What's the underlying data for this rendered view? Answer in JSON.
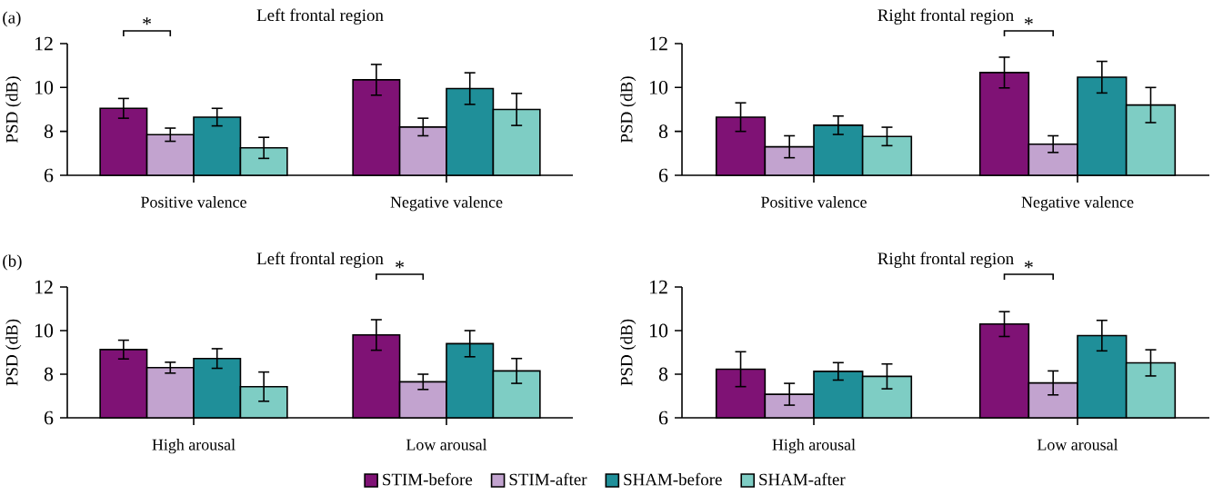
{
  "chart_data": [
    {
      "type": "bar",
      "title": "Left frontal region",
      "ylabel": "PSD (dB)",
      "categories": [
        "Positive valence",
        "Negative valence"
      ],
      "ylim": [
        6,
        12
      ],
      "yticks": [
        6,
        8,
        10,
        12
      ],
      "series": [
        {
          "color": "#7f1275",
          "values": [
            9.05,
            10.35
          ],
          "errors": [
            0.45,
            0.7
          ]
        },
        {
          "color": "#c2a3cf",
          "values": [
            7.85,
            8.2
          ],
          "errors": [
            0.3,
            0.4
          ]
        },
        {
          "color": "#1f8f99",
          "values": [
            8.65,
            9.95
          ],
          "errors": [
            0.4,
            0.72
          ]
        },
        {
          "color": "#7ecdc4",
          "values": [
            7.25,
            9.0
          ],
          "errors": [
            0.48,
            0.73
          ]
        }
      ],
      "annotations": [
        "(a)",
        "*"
      ]
    },
    {
      "type": "bar",
      "title": "Right frontal region",
      "ylabel": "PSD (dB)",
      "categories": [
        "Positive valence",
        "Negative valence"
      ],
      "ylim": [
        6,
        12
      ],
      "yticks": [
        6,
        8,
        10,
        12
      ],
      "series": [
        {
          "color": "#7f1275",
          "values": [
            8.65,
            10.68
          ],
          "errors": [
            0.65,
            0.7
          ]
        },
        {
          "color": "#c2a3cf",
          "values": [
            7.3,
            7.42
          ],
          "errors": [
            0.5,
            0.38
          ]
        },
        {
          "color": "#1f8f99",
          "values": [
            8.28,
            10.47
          ],
          "errors": [
            0.42,
            0.72
          ]
        },
        {
          "color": "#7ecdc4",
          "values": [
            7.77,
            9.2
          ],
          "errors": [
            0.42,
            0.8
          ]
        }
      ],
      "annotations": [
        "*"
      ]
    },
    {
      "type": "bar",
      "title": "Left frontal region",
      "ylabel": "PSD (dB)",
      "categories": [
        "High arousal",
        "Low arousal"
      ],
      "ylim": [
        6,
        12
      ],
      "yticks": [
        6,
        8,
        10,
        12
      ],
      "series": [
        {
          "color": "#7f1275",
          "values": [
            9.13,
            9.8
          ],
          "errors": [
            0.43,
            0.7
          ]
        },
        {
          "color": "#c2a3cf",
          "values": [
            8.3,
            7.65
          ],
          "errors": [
            0.25,
            0.35
          ]
        },
        {
          "color": "#1f8f99",
          "values": [
            8.72,
            9.4
          ],
          "errors": [
            0.45,
            0.6
          ]
        },
        {
          "color": "#7ecdc4",
          "values": [
            7.43,
            8.15
          ],
          "errors": [
            0.67,
            0.57
          ]
        }
      ],
      "annotations": [
        "(b)",
        "*"
      ]
    },
    {
      "type": "bar",
      "title": "Right frontal region",
      "ylabel": "PSD (dB)",
      "categories": [
        "High arousal",
        "Low arousal"
      ],
      "ylim": [
        6,
        12
      ],
      "yticks": [
        6,
        8,
        10,
        12
      ],
      "series": [
        {
          "name": "STIM-before",
          "color": "#7f1275",
          "values": [
            8.23,
            10.3
          ],
          "errors": [
            0.8,
            0.57
          ]
        },
        {
          "name": "STIM-after",
          "color": "#c2a3cf",
          "values": [
            7.08,
            7.6
          ],
          "errors": [
            0.5,
            0.55
          ]
        },
        {
          "name": "SHAM-before",
          "color": "#1f8f99",
          "values": [
            8.13,
            9.77
          ],
          "errors": [
            0.4,
            0.7
          ]
        },
        {
          "name": "SHAM-after",
          "color": "#7ecdc4",
          "values": [
            7.9,
            8.52
          ],
          "errors": [
            0.57,
            0.6
          ]
        }
      ],
      "annotations": [
        "*"
      ],
      "legend": "bottom"
    }
  ]
}
